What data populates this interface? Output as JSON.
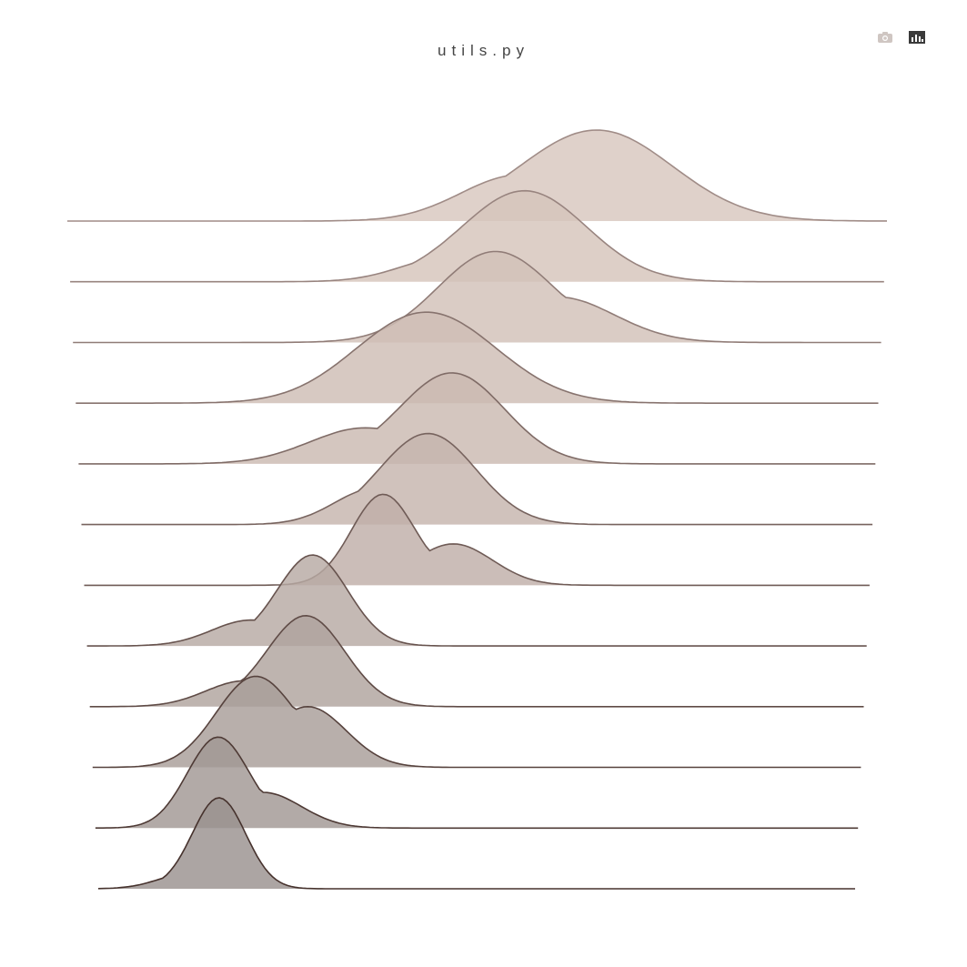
{
  "title": "utils.py",
  "toolbar": {
    "camera_icon": "camera-icon",
    "chart_icon": "bar-chart-icon"
  },
  "chart_data": {
    "type": "area",
    "subtype": "ridgeline",
    "x_axis_visible": false,
    "y_axis_visible": false,
    "grid": false,
    "legend": "none",
    "series": [
      {
        "peak": 0.65,
        "width": 0.09,
        "amp": 1.0,
        "shoulder": {
          "c": 0.55,
          "w": 0.07,
          "a": 0.45
        },
        "color": "#d8c7be"
      },
      {
        "peak": 0.56,
        "width": 0.075,
        "amp": 1.0,
        "shoulder": {
          "c": 0.47,
          "w": 0.06,
          "a": 0.25
        },
        "color": "#d5c4bb"
      },
      {
        "peak": 0.52,
        "width": 0.07,
        "amp": 1.0,
        "shoulder": {
          "c": 0.6,
          "w": 0.07,
          "a": 0.45
        },
        "color": "#d2c1b8"
      },
      {
        "peak": 0.44,
        "width": 0.085,
        "amp": 1.0,
        "shoulder": {
          "c": 0.36,
          "w": 0.06,
          "a": 0.3
        },
        "color": "#cebdb4"
      },
      {
        "peak": 0.47,
        "width": 0.065,
        "amp": 1.0,
        "shoulder": {
          "c": 0.36,
          "w": 0.07,
          "a": 0.35
        },
        "color": "#cab9b1"
      },
      {
        "peak": 0.44,
        "width": 0.06,
        "amp": 1.0,
        "shoulder": {
          "c": 0.37,
          "w": 0.05,
          "a": 0.35
        },
        "color": "#c6b5ad"
      },
      {
        "peak": 0.38,
        "width": 0.04,
        "amp": 1.0,
        "shoulder": {
          "c": 0.47,
          "w": 0.05,
          "a": 0.4
        },
        "color": "#bfafa8"
      },
      {
        "peak": 0.29,
        "width": 0.045,
        "amp": 1.0,
        "shoulder": {
          "c": 0.21,
          "w": 0.05,
          "a": 0.25
        },
        "color": "#b7a9a3"
      },
      {
        "peak": 0.28,
        "width": 0.05,
        "amp": 1.0,
        "shoulder": {
          "c": 0.2,
          "w": 0.05,
          "a": 0.25
        },
        "color": "#b0a39e"
      },
      {
        "peak": 0.21,
        "width": 0.05,
        "amp": 1.0,
        "shoulder": {
          "c": 0.28,
          "w": 0.05,
          "a": 0.6
        },
        "color": "#a89d99"
      },
      {
        "peak": 0.16,
        "width": 0.04,
        "amp": 1.0,
        "shoulder": {
          "c": 0.22,
          "w": 0.05,
          "a": 0.35
        },
        "color": "#a19794"
      },
      {
        "peak": 0.16,
        "width": 0.035,
        "amp": 1.0,
        "shoulder": {
          "c": 0.12,
          "w": 0.04,
          "a": 0.15
        },
        "color": "#9a918f"
      }
    ]
  }
}
